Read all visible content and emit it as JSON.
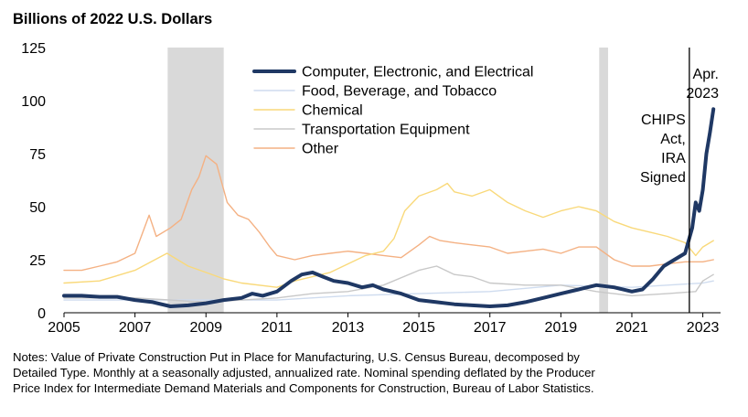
{
  "chart_data": {
    "type": "line",
    "title": "Billions of 2022 U.S. Dollars",
    "xlabel": "",
    "ylabel": "",
    "xlim": [
      2005,
      2023.5
    ],
    "ylim": [
      0,
      125
    ],
    "yticks": [
      0,
      25,
      50,
      75,
      100,
      125
    ],
    "xticks": [
      2005,
      2007,
      2009,
      2011,
      2013,
      2015,
      2017,
      2019,
      2021,
      2023
    ],
    "recessions": [
      [
        2007.92,
        2009.5
      ],
      [
        2020.08,
        2020.33
      ]
    ],
    "event_line": {
      "x": 2022.62,
      "label": [
        "CHIPS",
        "Act,",
        "IRA",
        "Signed"
      ]
    },
    "end_label": [
      "Apr.",
      "2023"
    ],
    "series": [
      {
        "name": "Computer, Electronic, and Electrical",
        "color": "#1f3864",
        "width": 4,
        "x": [
          2005,
          2005.5,
          2006,
          2006.5,
          2007,
          2007.5,
          2008,
          2008.5,
          2009,
          2009.5,
          2010,
          2010.3,
          2010.6,
          2011,
          2011.4,
          2011.7,
          2012,
          2012.3,
          2012.6,
          2013,
          2013.4,
          2013.7,
          2014,
          2014.5,
          2015,
          2015.5,
          2016,
          2016.5,
          2017,
          2017.5,
          2018,
          2018.5,
          2019,
          2019.5,
          2020,
          2020.5,
          2021,
          2021.3,
          2021.6,
          2021.9,
          2022.2,
          2022.5,
          2022.7,
          2022.8,
          2022.9,
          2023,
          2023.1,
          2023.2,
          2023.3
        ],
        "y": [
          8,
          8,
          7.5,
          7.5,
          6,
          5,
          3,
          3.5,
          4.5,
          6,
          7,
          9,
          8,
          10,
          15,
          18,
          19,
          17,
          15,
          14,
          12,
          13,
          11,
          9,
          6,
          5,
          4,
          3.5,
          3,
          3.5,
          5,
          7,
          9,
          11,
          13,
          12,
          10,
          11,
          16,
          22,
          25,
          28,
          40,
          52,
          48,
          58,
          75,
          85,
          96
        ]
      },
      {
        "name": "Food, Beverage, and Tobacco",
        "color": "#cfdcef",
        "width": 1.4,
        "x": [
          2005,
          2007,
          2009,
          2011,
          2013,
          2015,
          2017,
          2019,
          2021,
          2022,
          2023,
          2023.3
        ],
        "y": [
          6,
          6,
          6,
          6,
          8,
          9,
          10,
          13,
          12,
          13,
          14,
          15
        ]
      },
      {
        "name": "Chemical",
        "color": "#f9d97a",
        "width": 1.4,
        "x": [
          2005,
          2006,
          2007,
          2007.9,
          2008.5,
          2009,
          2009.5,
          2010,
          2011,
          2011.5,
          2012,
          2012.5,
          2013,
          2013.5,
          2014,
          2014.3,
          2014.6,
          2015,
          2015.5,
          2015.8,
          2016,
          2016.5,
          2017,
          2017.5,
          2018,
          2018.5,
          2019,
          2019.5,
          2020,
          2020.5,
          2021,
          2021.5,
          2022,
          2022.5,
          2022.8,
          2023,
          2023.3
        ],
        "y": [
          14,
          15,
          20,
          28,
          22,
          19,
          16,
          14,
          12,
          15,
          17,
          19,
          23,
          27,
          29,
          35,
          48,
          55,
          58,
          61,
          57,
          55,
          58,
          52,
          48,
          45,
          48,
          50,
          48,
          43,
          40,
          38,
          36,
          33,
          27,
          31,
          34
        ]
      },
      {
        "name": "Transportation Equipment",
        "color": "#c8c8c8",
        "width": 1.4,
        "x": [
          2005,
          2007,
          2008,
          2009,
          2010,
          2011,
          2012,
          2013,
          2014,
          2015,
          2015.5,
          2016,
          2016.5,
          2017,
          2018,
          2019,
          2020,
          2021,
          2022,
          2022.8,
          2023,
          2023.3
        ],
        "y": [
          7,
          7,
          6,
          5,
          6,
          7,
          9,
          10,
          13,
          20,
          22,
          18,
          17,
          14,
          13,
          13,
          10,
          8,
          9,
          10,
          15,
          18
        ]
      },
      {
        "name": "Other",
        "color": "#f4b183",
        "width": 1.4,
        "x": [
          2005,
          2005.5,
          2006,
          2006.5,
          2007,
          2007.4,
          2007.6,
          2008,
          2008.3,
          2008.6,
          2008.8,
          2009,
          2009.3,
          2009.6,
          2009.9,
          2010.2,
          2010.5,
          2010.8,
          2011,
          2011.5,
          2012,
          2012.5,
          2013,
          2013.5,
          2014,
          2014.5,
          2015,
          2015.3,
          2015.6,
          2016,
          2016.5,
          2017,
          2017.5,
          2018,
          2018.5,
          2019,
          2019.5,
          2020,
          2020.5,
          2021,
          2021.5,
          2022,
          2022.5,
          2023,
          2023.3
        ],
        "y": [
          20,
          20,
          22,
          24,
          28,
          46,
          36,
          40,
          44,
          58,
          64,
          74,
          70,
          52,
          46,
          44,
          38,
          31,
          27,
          25,
          27,
          28,
          29,
          28,
          27,
          26,
          32,
          36,
          34,
          33,
          32,
          31,
          28,
          29,
          30,
          28,
          31,
          31,
          25,
          22,
          22,
          23,
          24,
          24,
          25
        ]
      }
    ]
  },
  "notes": {
    "line1": "Notes: Value of Private Construction Put in Place for Manufacturing, U.S. Census Bureau, decomposed by",
    "line2": "Detailed Type. Monthly at a seasonally adjusted, annualized rate. Nominal spending deflated by the Producer",
    "line3": "Price Index for Intermediate Demand Materials and Components for Construction, Bureau of Labor Statistics."
  }
}
